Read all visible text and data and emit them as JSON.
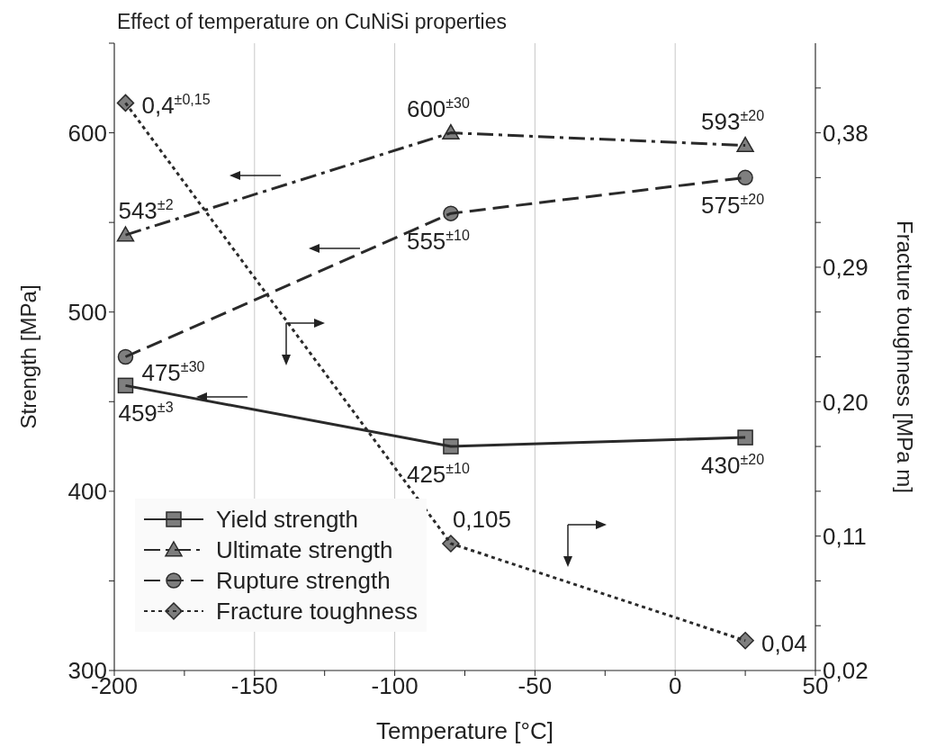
{
  "chart_data": {
    "type": "line",
    "title": "Effect of temperature on CuNiSi properties",
    "xlabel": "Temperature [°C]",
    "ylabel": "Strength [MPa]",
    "y2label": "Fracture toughness [MPa m]",
    "x": [
      -196,
      -80,
      25
    ],
    "xlim": [
      -200,
      50
    ],
    "xticks": [
      -200,
      {
        "value": -175,
        "label": null
      },
      -150,
      {
        "value": -125,
        "label": null
      },
      -100,
      {
        "value": -75,
        "label": null
      },
      -50,
      {
        "value": -25,
        "label": null
      },
      0,
      {
        "value": 25,
        "label": null
      },
      50
    ],
    "ylim": [
      300,
      650
    ],
    "yticks": [
      300,
      {
        "value": 350,
        "label": null
      },
      400,
      {
        "value": 450,
        "label": null
      },
      500,
      {
        "value": 550,
        "label": null
      },
      600,
      {
        "value": 650,
        "label": null
      }
    ],
    "y2lim": [
      0.02,
      0.44
    ],
    "y2ticks": [
      {
        "value": 0.02,
        "label": "0,02"
      },
      {
        "value": 0.05,
        "label": null
      },
      {
        "value": 0.08,
        "label": null
      },
      {
        "value": 0.11,
        "label": "0,11"
      },
      {
        "value": 0.14,
        "label": null
      },
      {
        "value": 0.17,
        "label": null
      },
      {
        "value": 0.2,
        "label": "0,20"
      },
      {
        "value": 0.23,
        "label": null
      },
      {
        "value": 0.26,
        "label": null
      },
      {
        "value": 0.29,
        "label": "0,29"
      },
      {
        "value": 0.32,
        "label": null
      },
      {
        "value": 0.35,
        "label": null
      },
      {
        "value": 0.38,
        "label": "0,38"
      },
      {
        "value": 0.41,
        "label": null
      }
    ],
    "grid": true,
    "legend": "bottom left",
    "series": [
      {
        "name": "Yield strength",
        "color": "#2a2a2a",
        "marker": "square",
        "line_style": "solid",
        "values": [
          459,
          425,
          430
        ],
        "value_labels": [
          "459$^{±3}$",
          "425$^{±10}$",
          "430$^{±20}$"
        ]
      },
      {
        "name": "Ultimate strength",
        "color": "#2a2a2a",
        "marker": "triangle",
        "line_style": "dashdot",
        "values": [
          543,
          600,
          593
        ],
        "value_labels": [
          "543$^{±2}$",
          "600$^{±30}$",
          "593$^{±20}$"
        ]
      },
      {
        "name": "Rupture strength",
        "color": "#2a2a2a",
        "marker": "circle",
        "line_style": "dashed",
        "values": [
          475,
          555,
          575
        ],
        "value_labels": [
          "475$^{±30}$",
          "555$^{±10}$",
          "575$^{±20}$"
        ]
      },
      {
        "name": "Fracture toughness",
        "color": "#2a2a2a",
        "marker": "diamond",
        "line_style": "dotted",
        "axis": "y2",
        "values": [
          0.4,
          0.105,
          0.04
        ],
        "value_labels": [
          "0,4$^{±0,15}$",
          "0,105",
          "0,04"
        ]
      }
    ]
  }
}
